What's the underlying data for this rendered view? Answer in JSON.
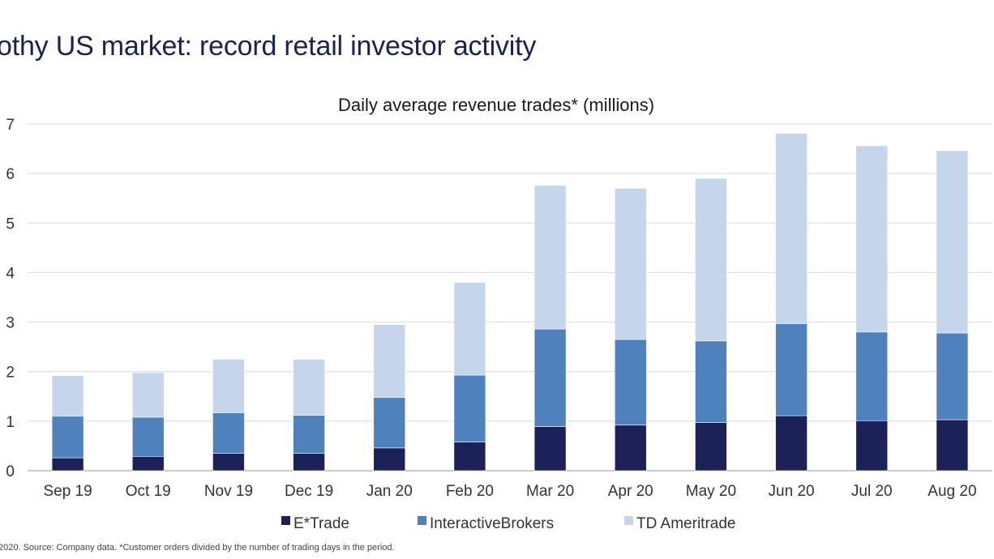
{
  "page": {
    "title": "othy US market: record retail investor activity",
    "footnote": "2020. Source: Company data. *Customer orders divided by the number of trading days in the period."
  },
  "chart_data": {
    "type": "bar",
    "stacked": true,
    "title": "Daily average revenue trades* (millions)",
    "xlabel": "",
    "ylabel": "",
    "ylim": [
      0,
      7
    ],
    "yticks": [
      0,
      1,
      2,
      3,
      4,
      5,
      6,
      7
    ],
    "grid": true,
    "legend_position": "bottom",
    "categories": [
      "Sep 19",
      "Oct 19",
      "Nov 19",
      "Dec 19",
      "Jan 20",
      "Feb 20",
      "Mar 20",
      "Apr 20",
      "May 20",
      "Jun 20",
      "Jul 20",
      "Aug 20"
    ],
    "series": [
      {
        "name": "E*Trade",
        "color": "#1c2257",
        "values": [
          0.26,
          0.29,
          0.35,
          0.35,
          0.46,
          0.58,
          0.89,
          0.92,
          0.97,
          1.11,
          1.01,
          1.03
        ]
      },
      {
        "name": "InteractiveBrokers",
        "color": "#4f81bd",
        "values": [
          0.84,
          0.79,
          0.82,
          0.77,
          1.02,
          1.35,
          1.97,
          1.73,
          1.65,
          1.86,
          1.79,
          1.75
        ]
      },
      {
        "name": "TD Ameritrade",
        "color": "#c5d5ec",
        "values": [
          0.82,
          0.9,
          1.08,
          1.13,
          1.47,
          1.87,
          2.9,
          3.05,
          3.28,
          3.84,
          3.76,
          3.68
        ]
      }
    ]
  }
}
